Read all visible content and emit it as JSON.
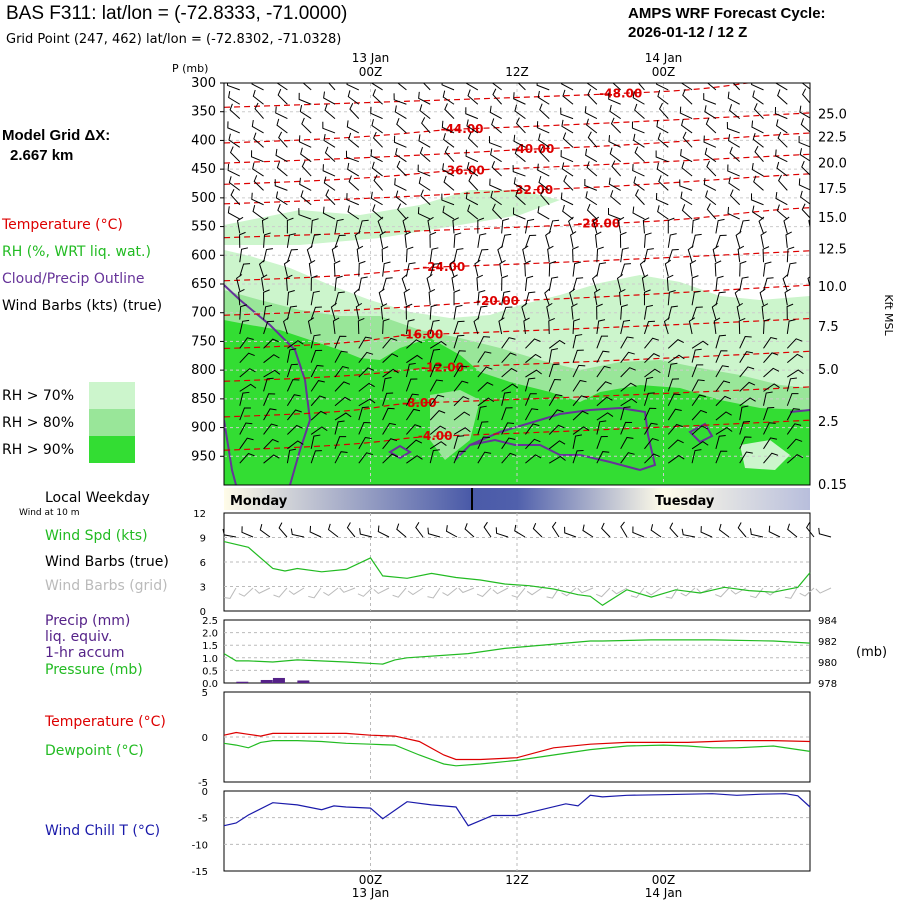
{
  "header": {
    "title": "BAS F311:  lat/lon = (-72.8333, -71.0000)",
    "grid_point": "Grid Point (247, 462) lat/lon = (-72.8302, -71.0328)",
    "cycle_line1": "AMPS WRF Forecast Cycle:",
    "cycle_line2": "2026-01-12 / 12  Z",
    "model_grid_line1": "Model Grid ΔX:",
    "model_grid_line2": "2.667 km"
  },
  "colors": {
    "temperature": "#dd0000",
    "rh": "#22bb22",
    "cloud": "#663399",
    "windchill": "#1a1aaa",
    "pressure": "#22bb22",
    "precip": "#552288",
    "dewpoint": "#22bb22",
    "rh70": "#ccf5cc",
    "rh80": "#99e699",
    "rh90": "#33dd33"
  },
  "legend": {
    "temperature": "Temperature (°C)",
    "rh": "RH (%, WRT liq. wat.)",
    "cloud": "Cloud/Precip Outline",
    "wind_barbs": "Wind Barbs (kts) (true)",
    "rh70": "RH > 70%",
    "rh80": "RH > 80%",
    "rh90": "RH > 90%"
  },
  "time_axis": {
    "top_labels": [
      {
        "line1": "13 Jan",
        "line2": "00Z"
      },
      {
        "line1": "",
        "line2": "12Z"
      },
      {
        "line1": "14 Jan",
        "line2": "00Z"
      }
    ],
    "bottom_labels": [
      {
        "line1": "00Z",
        "line2": "13 Jan"
      },
      {
        "line1": "12Z",
        "line2": ""
      },
      {
        "line1": "00Z",
        "line2": "14 Jan"
      }
    ],
    "hours": [
      12,
      24,
      36
    ]
  },
  "weekday": {
    "label": "Local Weekday",
    "monday": "Monday",
    "tuesday": "Tuesday"
  },
  "chart_data": [
    {
      "type": "heatmap",
      "name": "cross-section",
      "ylabel": "P (mb)",
      "y2label": "Kft MSL",
      "pressure_ticks": [
        300,
        350,
        400,
        450,
        500,
        550,
        600,
        650,
        700,
        750,
        800,
        850,
        900,
        950
      ],
      "kft_ticks": [
        "25.0",
        "22.5",
        "20.0",
        "17.5",
        "15.0",
        "12.5",
        "10.0",
        "7.5",
        "5.0",
        "2.5",
        "0.15"
      ],
      "kft_pressures": [
        355,
        395,
        440,
        485,
        535,
        590,
        655,
        725,
        800,
        890,
        1000
      ],
      "x_range_hours": [
        0,
        48
      ],
      "p_range": [
        300,
        1000
      ],
      "temp_contours": [
        {
          "label": "-48.00",
          "hour": 32.5,
          "p": 318
        },
        {
          "label": "-44.00",
          "hour": 19.5,
          "p": 380
        },
        {
          "label": "-40.00",
          "hour": 25.3,
          "p": 415
        },
        {
          "label": "-36.00",
          "hour": 19.6,
          "p": 452
        },
        {
          "label": "-32.00",
          "hour": 25.2,
          "p": 486
        },
        {
          "label": "-28.00",
          "hour": 30.7,
          "p": 545
        },
        {
          "label": "-24.00",
          "hour": 18.0,
          "p": 620
        },
        {
          "label": "-20.00",
          "hour": 22.4,
          "p": 680
        },
        {
          "label": "-16.00",
          "hour": 16.2,
          "p": 738
        },
        {
          "label": "-12.00",
          "hour": 17.9,
          "p": 795
        },
        {
          "label": "-8.00",
          "hour": 16.0,
          "p": 857
        },
        {
          "label": "-4.00",
          "hour": 17.3,
          "p": 915
        }
      ]
    },
    {
      "type": "line",
      "name": "wind",
      "ylim": [
        0,
        12
      ],
      "yticks": [
        0,
        3,
        6,
        9,
        12
      ],
      "header": "Wind at 10 m",
      "labels": [
        "Wind Spd (kts)",
        "Wind Barbs (true)",
        "Wind Barbs (grid)"
      ],
      "series": [
        {
          "name": "Wind Spd (kts)",
          "x": [
            0,
            2,
            4,
            5,
            6,
            8,
            10,
            12,
            13,
            15,
            17,
            19,
            21,
            23,
            25,
            27,
            29,
            30,
            31,
            33,
            35,
            37,
            39,
            41,
            43,
            45,
            47,
            48
          ],
          "values": [
            8.5,
            7.8,
            5.2,
            4.9,
            5.2,
            4.8,
            5.1,
            6.5,
            4.3,
            4.0,
            4.6,
            4.1,
            3.8,
            3.3,
            3.1,
            2.7,
            2.0,
            1.8,
            0.7,
            2.6,
            1.7,
            2.6,
            2.2,
            2.9,
            2.5,
            2.3,
            2.9,
            4.7
          ]
        }
      ]
    },
    {
      "type": "line",
      "name": "precip-pressure",
      "ylim": [
        0,
        2.5
      ],
      "yticks": [
        "0.0",
        "0.5",
        "1.0",
        "1.5",
        "2.0",
        "2.5"
      ],
      "y2ticks": [
        "978",
        "980",
        "982",
        "984"
      ],
      "y2unit": "(mb)",
      "labels": [
        "Precip (mm)",
        "liq. equiv.",
        "1-hr accum",
        "Pressure (mb)"
      ],
      "pressure": {
        "x": [
          0,
          1,
          2,
          4,
          6,
          10,
          13,
          14,
          15,
          20,
          23,
          28,
          30,
          31,
          35,
          40,
          45,
          48
        ],
        "values": [
          980.8,
          980.1,
          980.1,
          980.0,
          980.2,
          980.0,
          979.8,
          980.2,
          980.4,
          980.8,
          981.3,
          981.8,
          982.0,
          982.0,
          982.1,
          982.1,
          982.0,
          981.8
        ]
      },
      "precip": {
        "x": [
          1.5,
          3.5,
          4.5,
          6.5
        ],
        "values": [
          0.05,
          0.12,
          0.2,
          0.1
        ]
      }
    },
    {
      "type": "line",
      "name": "temperature",
      "ylim": [
        -5,
        5
      ],
      "yticks": [
        "5",
        "0",
        "-5"
      ],
      "labels": [
        "Temperature (°C)",
        "Dewpoint (°C)"
      ],
      "series": [
        {
          "name": "Temperature",
          "x": [
            0,
            1,
            2,
            3,
            4,
            5,
            6,
            8,
            10,
            12,
            14,
            16,
            18,
            19,
            21,
            24,
            27,
            30,
            33,
            36,
            38,
            40,
            42,
            45,
            48
          ],
          "values": [
            0.2,
            0.5,
            0.3,
            0.1,
            0.4,
            0.4,
            0.4,
            0.4,
            0.4,
            0.2,
            0.1,
            -0.5,
            -2.0,
            -2.5,
            -2.5,
            -2.3,
            -1.2,
            -0.8,
            -0.6,
            -0.6,
            -0.6,
            -0.5,
            -0.4,
            -0.4,
            -0.5
          ]
        },
        {
          "name": "Dewpoint",
          "x": [
            0,
            1,
            2,
            3,
            4,
            5,
            6,
            8,
            10,
            12,
            14,
            16,
            18,
            19,
            21,
            24,
            27,
            30,
            33,
            36,
            38,
            40,
            42,
            45,
            48
          ],
          "values": [
            -0.7,
            -0.9,
            -1.2,
            -0.6,
            -0.4,
            -0.4,
            -0.4,
            -0.5,
            -0.7,
            -0.8,
            -0.9,
            -2.0,
            -3.0,
            -3.2,
            -3.0,
            -2.6,
            -2.0,
            -1.4,
            -1.0,
            -0.9,
            -1.0,
            -1.2,
            -1.2,
            -1.0,
            -1.6
          ]
        }
      ]
    },
    {
      "type": "line",
      "name": "windchill",
      "ylim": [
        -15,
        0
      ],
      "yticks": [
        "0",
        "-5",
        "-10",
        "-15"
      ],
      "labels": [
        "Wind Chill T (°C)"
      ],
      "series": [
        {
          "name": "Wind Chill",
          "x": [
            0,
            1,
            2,
            4,
            6,
            8,
            9,
            10,
            12,
            13,
            15,
            17,
            19,
            20,
            22,
            24,
            26,
            28,
            29,
            30,
            31,
            33,
            36,
            40,
            42,
            44,
            46,
            47,
            48
          ],
          "values": [
            -6.5,
            -6.0,
            -4.5,
            -2.2,
            -2.6,
            -3.5,
            -2.8,
            -3.0,
            -3.2,
            -5.2,
            -2.0,
            -2.6,
            -3.0,
            -6.5,
            -4.6,
            -4.6,
            -3.5,
            -2.4,
            -2.8,
            -0.8,
            -1.1,
            -0.8,
            -0.7,
            -0.5,
            -0.8,
            -0.6,
            -0.5,
            -0.9,
            -3.0
          ]
        }
      ]
    }
  ]
}
